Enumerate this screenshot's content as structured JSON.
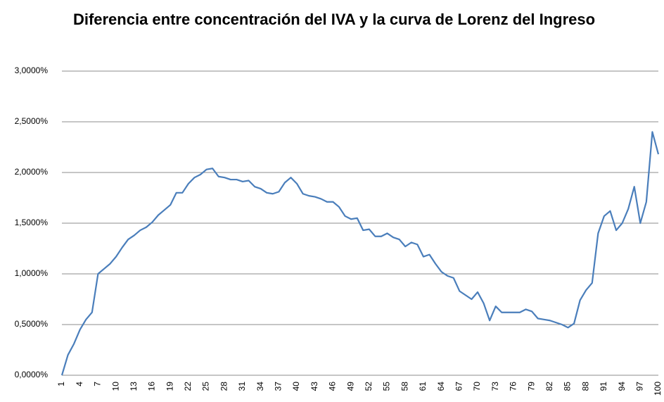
{
  "chart_data": {
    "type": "line",
    "title": "Diferencia entre concentración del IVA y la curva de Lorenz del Ingreso",
    "categories": [
      "1",
      null,
      null,
      "4",
      null,
      null,
      "7",
      null,
      null,
      "10",
      null,
      null,
      "13",
      null,
      null,
      "16",
      null,
      null,
      "19",
      null,
      null,
      "22",
      null,
      null,
      "25",
      null,
      null,
      "28",
      null,
      null,
      "31",
      null,
      null,
      "34",
      null,
      null,
      "37",
      null,
      null,
      "40",
      null,
      null,
      "43",
      null,
      null,
      "46",
      null,
      null,
      "49",
      null,
      null,
      "52",
      null,
      null,
      "55",
      null,
      null,
      "58",
      null,
      null,
      "61",
      null,
      null,
      "64",
      null,
      null,
      "67",
      null,
      null,
      "70",
      null,
      null,
      "73",
      null,
      null,
      "76",
      null,
      null,
      "79",
      null,
      null,
      "82",
      null,
      null,
      "85",
      null,
      null,
      "88",
      null,
      null,
      "91",
      null,
      null,
      "94",
      null,
      null,
      "97",
      null,
      null,
      "100"
    ],
    "values": [
      0,
      0.2,
      0.31,
      0.45,
      0.55,
      0.62,
      1.0,
      1.05,
      1.1,
      1.17,
      1.26,
      1.34,
      1.38,
      1.43,
      1.46,
      1.51,
      1.58,
      1.63,
      1.68,
      1.8,
      1.8,
      1.89,
      1.95,
      1.98,
      2.03,
      2.04,
      1.96,
      1.95,
      1.93,
      1.93,
      1.91,
      1.92,
      1.86,
      1.84,
      1.8,
      1.79,
      1.81,
      1.9,
      1.95,
      1.89,
      1.79,
      1.77,
      1.76,
      1.74,
      1.71,
      1.71,
      1.66,
      1.57,
      1.54,
      1.55,
      1.43,
      1.44,
      1.37,
      1.37,
      1.4,
      1.36,
      1.34,
      1.27,
      1.31,
      1.29,
      1.17,
      1.19,
      1.1,
      1.02,
      0.98,
      0.96,
      0.83,
      0.79,
      0.75,
      0.82,
      0.71,
      0.54,
      0.68,
      0.62,
      0.62,
      0.62,
      0.62,
      0.65,
      0.63,
      0.56,
      0.55,
      0.54,
      0.52,
      0.5,
      0.47,
      0.51,
      0.74,
      0.84,
      0.91,
      1.4,
      1.57,
      1.62,
      1.43,
      1.5,
      1.64,
      1.86,
      1.5,
      1.71,
      2.4,
      2.18
    ],
    "color": "#4a7ebb",
    "ylim": [
      0,
      3
    ],
    "yticks": [
      {
        "value": 0,
        "label": "0,0000%"
      },
      {
        "value": 0.5,
        "label": "0,5000%"
      },
      {
        "value": 1,
        "label": "1,0000%"
      },
      {
        "value": 1.5,
        "label": "1,5000%"
      },
      {
        "value": 2,
        "label": "2,0000%"
      },
      {
        "value": 2.5,
        "label": "2,5000%"
      },
      {
        "value": 3,
        "label": "3,0000%"
      }
    ],
    "grid": true
  }
}
